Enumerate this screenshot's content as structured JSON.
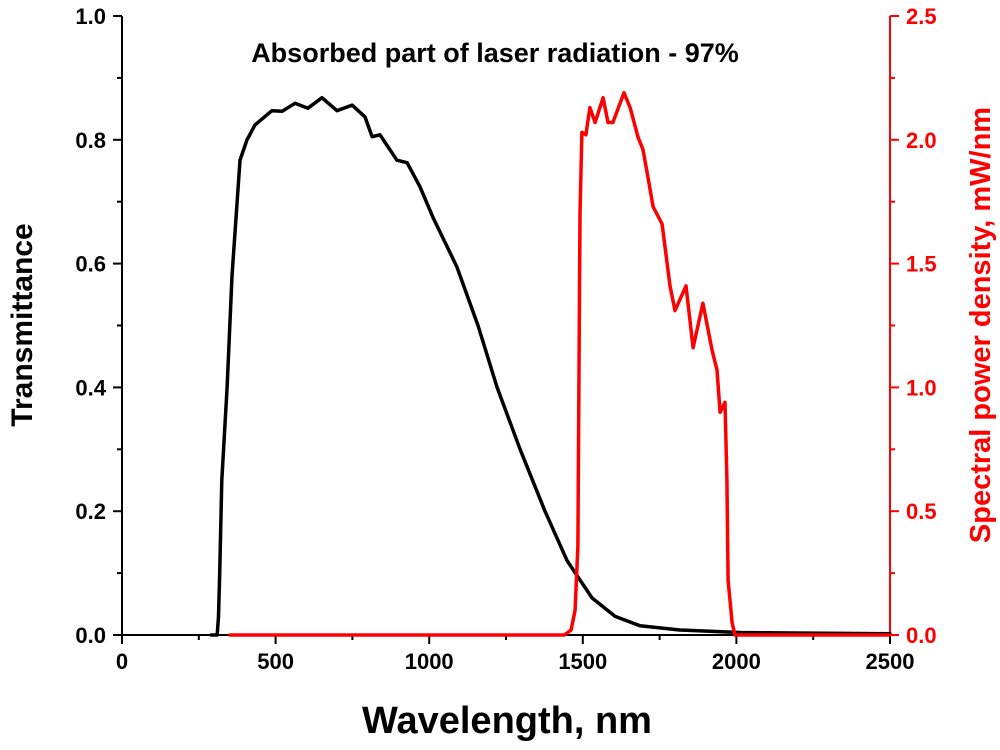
{
  "chart_data": {
    "type": "line",
    "title": "",
    "annotation": "Absorbed part of laser radiation - 97%",
    "xlabel": "Wavelength, nm",
    "ylabel": "Transmittance",
    "y2label": "Spectral power density, mW/nm",
    "xlim": [
      0,
      2500
    ],
    "ylim": [
      0,
      1.0
    ],
    "y2lim": [
      0,
      2.5
    ],
    "xticks": [
      "0",
      "500",
      "1000",
      "1500",
      "2000",
      "2500"
    ],
    "yticks": [
      "0.0",
      "0.2",
      "0.4",
      "0.6",
      "0.8",
      "1.0"
    ],
    "y2ticks": [
      "0.0",
      "0.5",
      "1.0",
      "1.5",
      "2.0",
      "2.5"
    ],
    "grid": false,
    "series": [
      {
        "name": "Transmittance",
        "axis": "left",
        "color": "#000000",
        "x": [
          290,
          310,
          314,
          318,
          325,
          342,
          358,
          384,
          407,
          433,
          488,
          521,
          563,
          605,
          651,
          700,
          749,
          791,
          814,
          840,
          895,
          928,
          970,
          1012,
          1090,
          1159,
          1221,
          1296,
          1377,
          1449,
          1530,
          1605,
          1686,
          1816,
          2012,
          2500
        ],
        "y": [
          0,
          0,
          0.03,
          0.1,
          0.25,
          0.4,
          0.58,
          0.767,
          0.8,
          0.824,
          0.847,
          0.846,
          0.859,
          0.851,
          0.868,
          0.847,
          0.856,
          0.837,
          0.805,
          0.808,
          0.767,
          0.763,
          0.724,
          0.675,
          0.595,
          0.5,
          0.4,
          0.3,
          0.2,
          0.12,
          0.06,
          0.03,
          0.015,
          0.008,
          0.004,
          0.002
        ]
      },
      {
        "name": "Spectral power density",
        "axis": "right",
        "color": "#ff0000",
        "x": [
          352,
          1440,
          1462,
          1475,
          1484,
          1491,
          1497,
          1510,
          1523,
          1540,
          1566,
          1582,
          1598,
          1634,
          1654,
          1680,
          1696,
          1712,
          1729,
          1758,
          1784,
          1800,
          1836,
          1859,
          1891,
          1921,
          1937,
          1947,
          1963,
          1969,
          1973,
          1986,
          1995,
          2010,
          2500
        ],
        "y": [
          0,
          0,
          0.02,
          0.1,
          0.36,
          1.7,
          2.03,
          2.02,
          2.13,
          2.07,
          2.17,
          2.07,
          2.07,
          2.19,
          2.13,
          2.01,
          1.96,
          1.85,
          1.73,
          1.66,
          1.41,
          1.31,
          1.41,
          1.16,
          1.34,
          1.15,
          1.07,
          0.9,
          0.94,
          0.63,
          0.22,
          0.05,
          0,
          0,
          0
        ]
      }
    ]
  }
}
